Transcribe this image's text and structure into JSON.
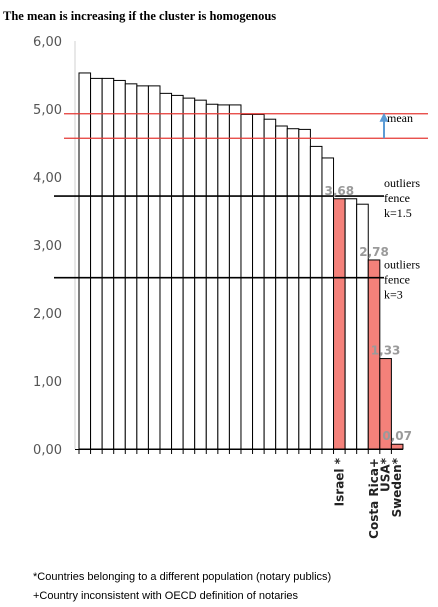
{
  "chart_data": {
    "type": "bar",
    "title": "The mean is increasing if the cluster is homogenous",
    "ylim": [
      0,
      6
    ],
    "yticks": [
      "0,00",
      "1,00",
      "2,00",
      "3,00",
      "4,00",
      "5,00",
      "6,00"
    ],
    "grid": false,
    "legend": "none",
    "values": [
      5.53,
      5.45,
      5.45,
      5.42,
      5.37,
      5.34,
      5.34,
      5.23,
      5.2,
      5.16,
      5.13,
      5.07,
      5.06,
      5.06,
      4.92,
      4.92,
      4.85,
      4.75,
      4.71,
      4.7,
      4.45,
      4.28,
      3.68,
      3.68,
      3.6,
      2.78,
      1.33,
      0.07
    ],
    "categories": [
      "",
      "",
      "",
      "",
      "",
      "",
      "",
      "",
      "",
      "",
      "",
      "",
      "",
      "",
      "",
      "",
      "",
      "",
      "",
      "",
      "",
      "",
      "Israel *",
      "",
      "",
      "Costa Rica+",
      "USA*",
      "Sweden*"
    ],
    "highlighted": [
      false,
      false,
      false,
      false,
      false,
      false,
      false,
      false,
      false,
      false,
      false,
      false,
      false,
      false,
      false,
      false,
      false,
      false,
      false,
      false,
      false,
      false,
      true,
      false,
      false,
      true,
      true,
      true
    ],
    "data_labels": [
      {
        "index": 22,
        "text": "3,68"
      },
      {
        "index": 25,
        "text": "2,78"
      },
      {
        "index": 26,
        "text": "1,33"
      },
      {
        "index": 27,
        "text": "0,07"
      }
    ],
    "mean_lines": [
      4.57,
      4.93
    ],
    "fences": [
      {
        "value": 3.72,
        "label": [
          "outliers",
          "fence",
          "k=1.5"
        ]
      },
      {
        "value": 2.52,
        "label": [
          "outliers",
          "fence",
          "k=3"
        ]
      }
    ],
    "mean_label": "mean",
    "colors": {
      "bar": "#ffffff",
      "highlight": "#f4817a",
      "mean_line": "#e53935",
      "fence_line": "#000000",
      "arrow": "#5b9bd5"
    }
  },
  "footnotes": [
    "*Countries belonging to a different population (notary publics)",
    "+Country inconsistent with OECD definition of notaries"
  ]
}
